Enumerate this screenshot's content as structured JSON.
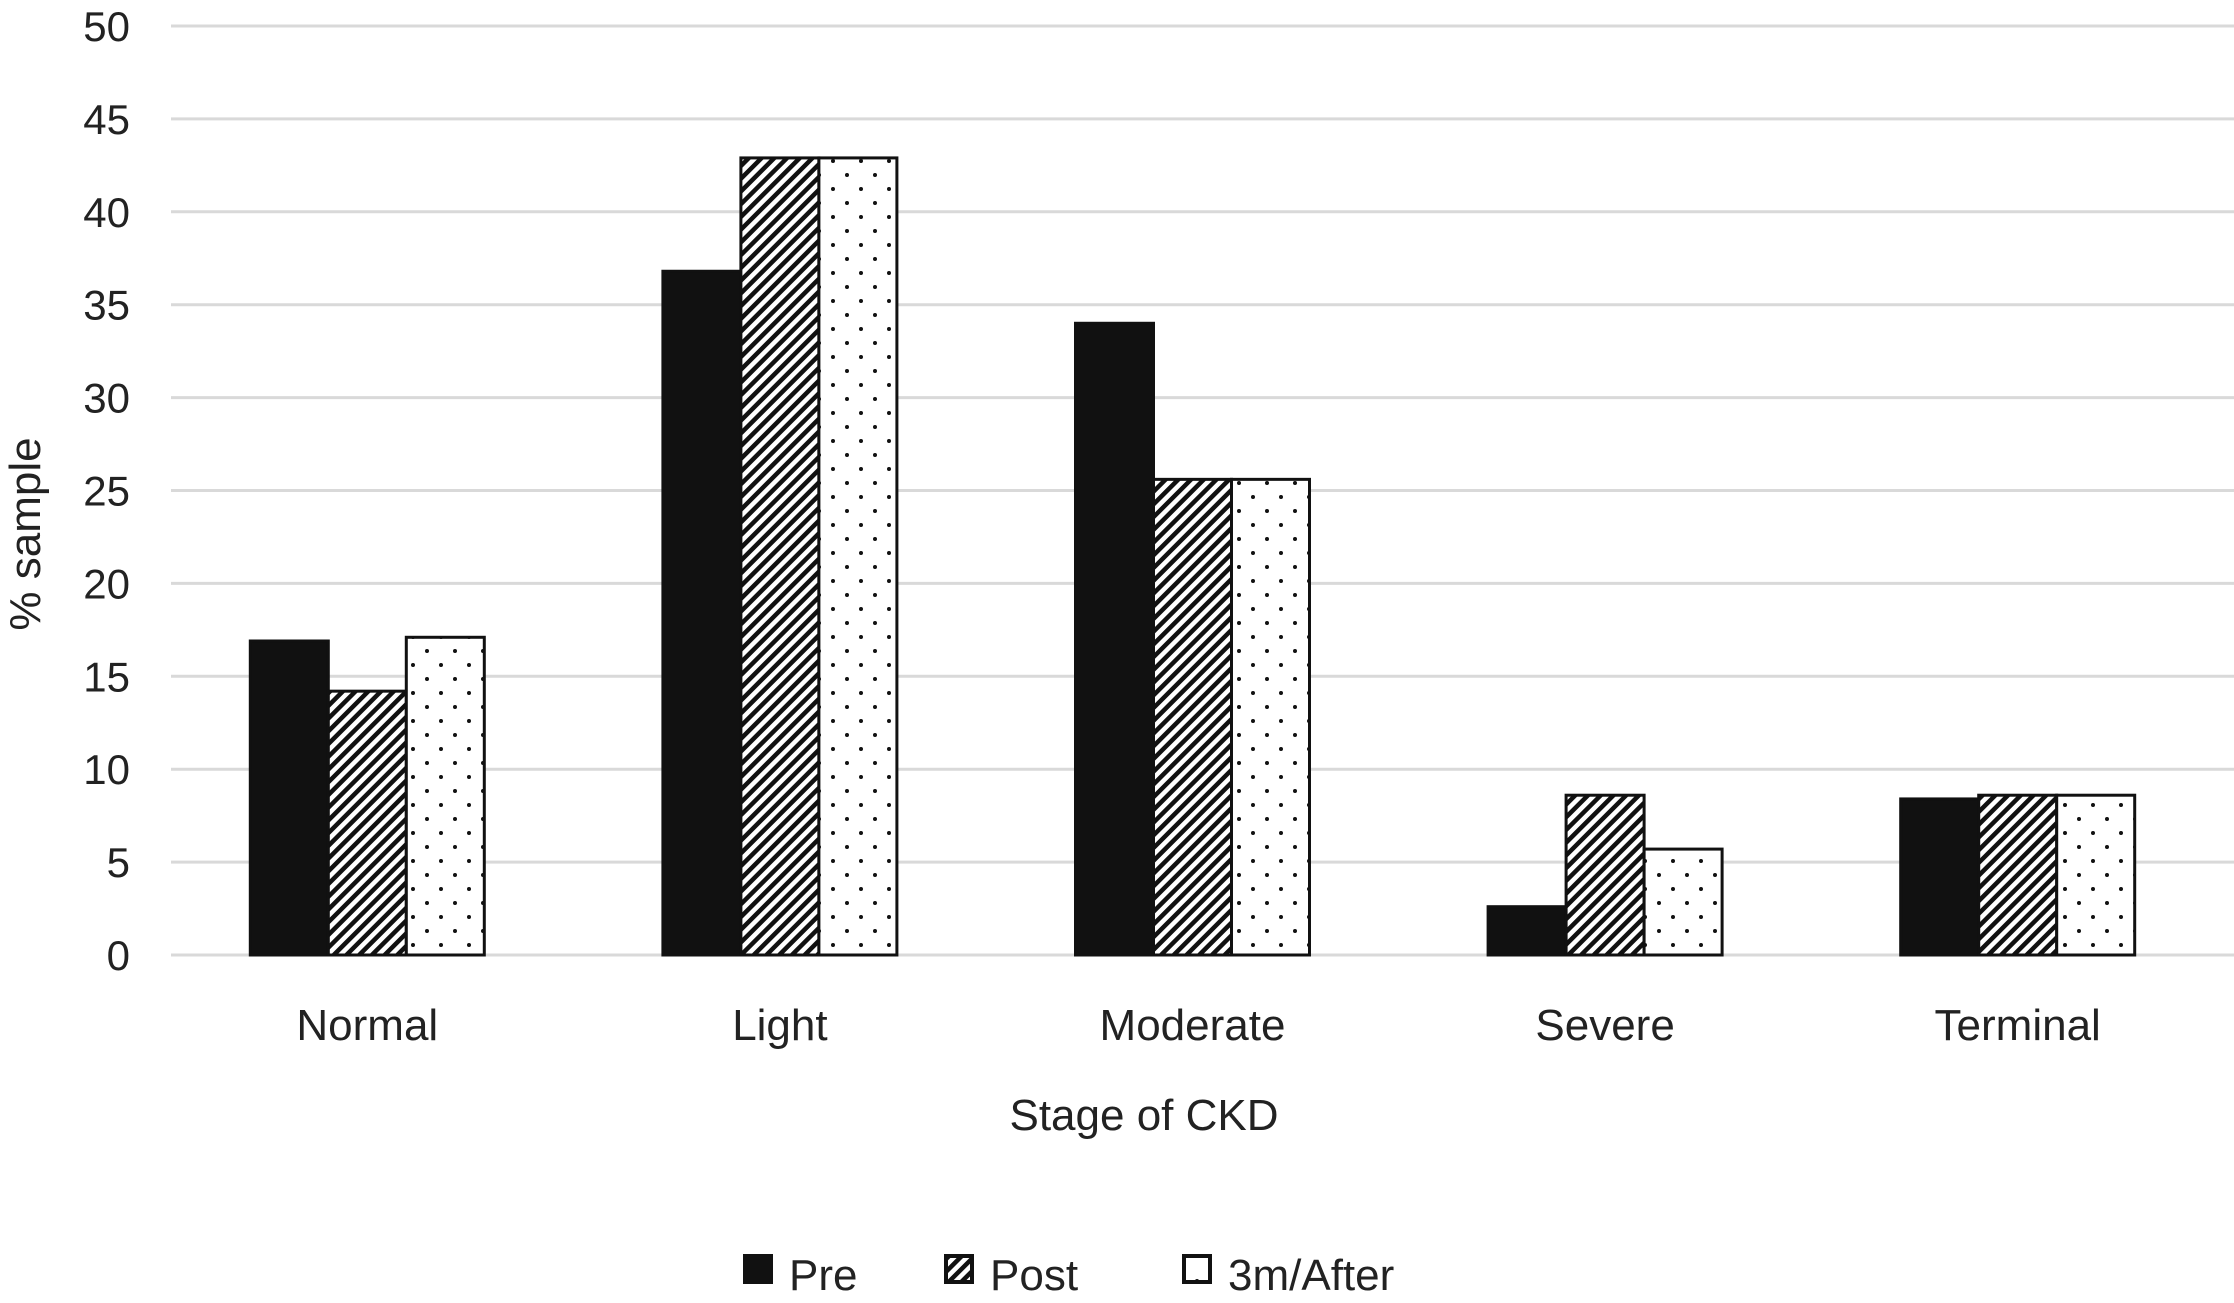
{
  "chart_data": {
    "type": "bar",
    "title": "",
    "xlabel": "Stage of CKD",
    "ylabel": "% sample",
    "ylim": [
      0,
      50
    ],
    "yticks": [
      0,
      5,
      10,
      15,
      20,
      25,
      30,
      35,
      40,
      45,
      50
    ],
    "grid": true,
    "legend_position": "bottom",
    "categories": [
      "Normal",
      "Light",
      "Moderate",
      "Severe",
      "Terminal"
    ],
    "series": [
      {
        "name": "Pre",
        "pattern": "solid",
        "color": "#111111",
        "values": [
          16.9,
          36.8,
          34.0,
          2.6,
          8.4
        ]
      },
      {
        "name": "Post",
        "pattern": "diagonal-hatch",
        "color": "#111111",
        "values": [
          14.2,
          42.9,
          25.6,
          8.6,
          8.6
        ]
      },
      {
        "name": "3m/After",
        "pattern": "dots",
        "color": "#111111",
        "values": [
          17.1,
          42.9,
          25.6,
          5.7,
          8.6
        ]
      }
    ]
  }
}
